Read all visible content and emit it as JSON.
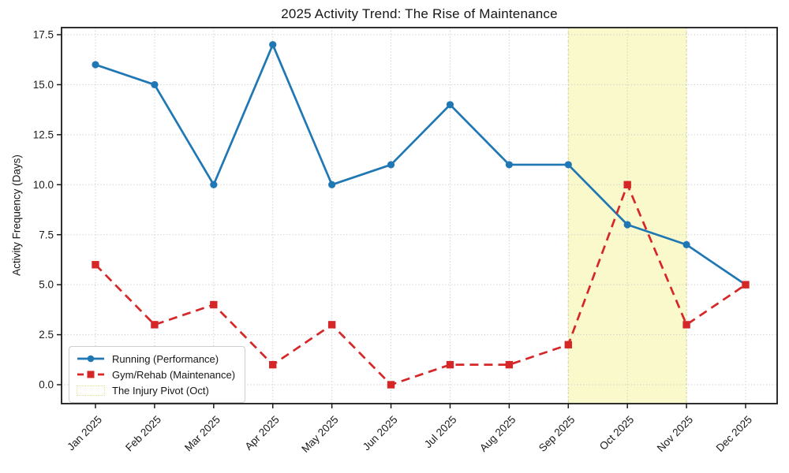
{
  "chart_data": {
    "type": "line",
    "title": "2025 Activity Trend: The Rise of Maintenance",
    "xlabel": "",
    "ylabel": "Activity Frequency (Days)",
    "categories": [
      "Jan 2025",
      "Feb 2025",
      "Mar 2025",
      "Apr 2025",
      "May 2025",
      "Jun 2025",
      "Jul 2025",
      "Aug 2025",
      "Sep 2025",
      "Oct 2025",
      "Nov 2025",
      "Dec 2025"
    ],
    "yticks": [
      0.0,
      2.5,
      5.0,
      7.5,
      10.0,
      12.5,
      15.0,
      17.5
    ],
    "ylim": [
      -0.9,
      17.9
    ],
    "grid": "dotted",
    "legend_position": "lower left",
    "series": [
      {
        "name": "Running (Performance)",
        "color": "#1f77b4",
        "line_style": "solid",
        "marker": "circle",
        "values": [
          16,
          15,
          10,
          17,
          10,
          11,
          14,
          11,
          11,
          8,
          7,
          5
        ]
      },
      {
        "name": "Gym/Rehab (Maintenance)",
        "color": "#d62728",
        "line_style": "dashed",
        "marker": "square",
        "values": [
          6,
          3,
          4,
          1,
          3,
          0,
          1,
          1,
          2,
          10,
          3,
          5
        ]
      }
    ],
    "highlight_span": {
      "label": "The Injury Pivot (Oct)",
      "from": "Sep 2025",
      "to": "Nov 2025",
      "fill_color": "#f9f9cb",
      "edge_color": "#dbdb7f"
    }
  }
}
